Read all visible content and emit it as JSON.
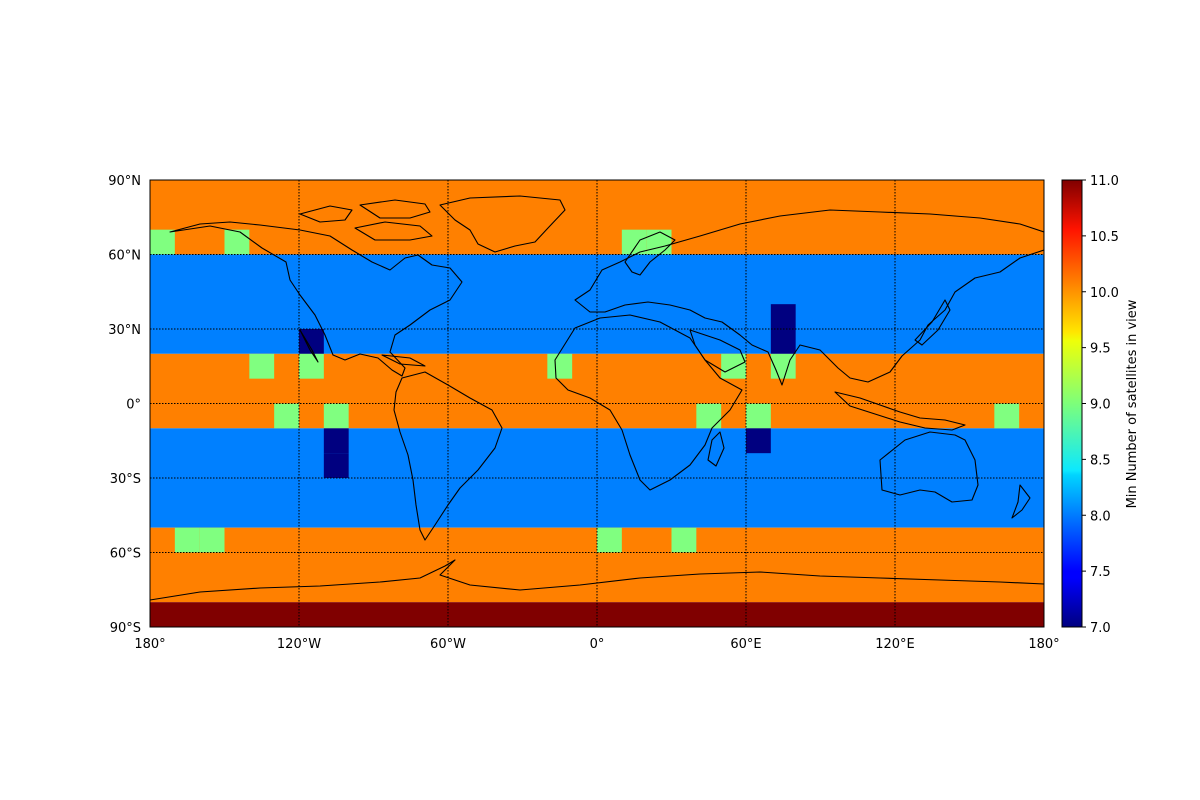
{
  "chart_data": {
    "type": "heatmap",
    "projection": "equirectangular",
    "lon_range": [
      -180,
      180
    ],
    "lat_range": [
      -90,
      90
    ],
    "cell_lon_step": 10,
    "cell_lat_step": 10,
    "grid": "dotted",
    "coastlines": true,
    "xtick_labels": [
      {
        "lon": -180,
        "text": "180°"
      },
      {
        "lon": -120,
        "text": "120°W"
      },
      {
        "lon": -60,
        "text": "60°W"
      },
      {
        "lon": 0,
        "text": "0°"
      },
      {
        "lon": 60,
        "text": "60°E"
      },
      {
        "lon": 120,
        "text": "120°E"
      },
      {
        "lon": 180,
        "text": "180°"
      }
    ],
    "ytick_labels": [
      {
        "lat": 90,
        "text": "90°N"
      },
      {
        "lat": 60,
        "text": "60°N"
      },
      {
        "lat": 30,
        "text": "30°N"
      },
      {
        "lat": 0,
        "text": "0°"
      },
      {
        "lat": -30,
        "text": "30°S"
      },
      {
        "lat": -60,
        "text": "60°S"
      },
      {
        "lat": -90,
        "text": "90°S"
      }
    ],
    "colorbar": {
      "label": "Min Number of satellites in view",
      "colormap": "jet",
      "vmin": 7.0,
      "vmax": 11.0,
      "tick_labels": [
        "7.0",
        "7.5",
        "8.0",
        "8.5",
        "9.0",
        "9.5",
        "10.0",
        "10.5",
        "11.0"
      ],
      "tick_values": [
        7.0,
        7.5,
        8.0,
        8.5,
        9.0,
        9.5,
        10.0,
        10.5,
        11.0
      ]
    },
    "bands": [
      {
        "lat_min": 60,
        "lat_max": 90,
        "value": 10
      },
      {
        "lat_min": 20,
        "lat_max": 60,
        "value": 8
      },
      {
        "lat_min": -10,
        "lat_max": 20,
        "value": 10
      },
      {
        "lat_min": -50,
        "lat_max": -10,
        "value": 8
      },
      {
        "lat_min": -80,
        "lat_max": -50,
        "value": 10
      },
      {
        "lat_min": -90,
        "lat_max": -80,
        "value": 11
      }
    ],
    "cells": [
      {
        "lon": -180,
        "lat": 60,
        "value": 9
      },
      {
        "lon": -150,
        "lat": 60,
        "value": 9
      },
      {
        "lon": 10,
        "lat": 60,
        "value": 9
      },
      {
        "lon": 20,
        "lat": 60,
        "value": 9
      },
      {
        "lon": -120,
        "lat": 20,
        "value": 7
      },
      {
        "lon": 70,
        "lat": 30,
        "value": 7
      },
      {
        "lon": 70,
        "lat": 20,
        "value": 7
      },
      {
        "lon": -140,
        "lat": 10,
        "value": 9
      },
      {
        "lon": -120,
        "lat": 10,
        "value": 9
      },
      {
        "lon": -20,
        "lat": 10,
        "value": 9
      },
      {
        "lon": 50,
        "lat": 10,
        "value": 9
      },
      {
        "lon": 70,
        "lat": 10,
        "value": 9
      },
      {
        "lon": -130,
        "lat": -10,
        "value": 9
      },
      {
        "lon": -110,
        "lat": -10,
        "value": 9
      },
      {
        "lon": 40,
        "lat": -10,
        "value": 9
      },
      {
        "lon": 60,
        "lat": -10,
        "value": 9
      },
      {
        "lon": 160,
        "lat": -10,
        "value": 9
      },
      {
        "lon": -110,
        "lat": -20,
        "value": 7
      },
      {
        "lon": -110,
        "lat": -30,
        "value": 7
      },
      {
        "lon": 60,
        "lat": -20,
        "value": 7
      },
      {
        "lon": -170,
        "lat": -60,
        "value": 9
      },
      {
        "lon": -160,
        "lat": -60,
        "value": 9
      },
      {
        "lon": 0,
        "lat": -60,
        "value": 9
      },
      {
        "lon": 30,
        "lat": -60,
        "value": 9
      }
    ]
  }
}
